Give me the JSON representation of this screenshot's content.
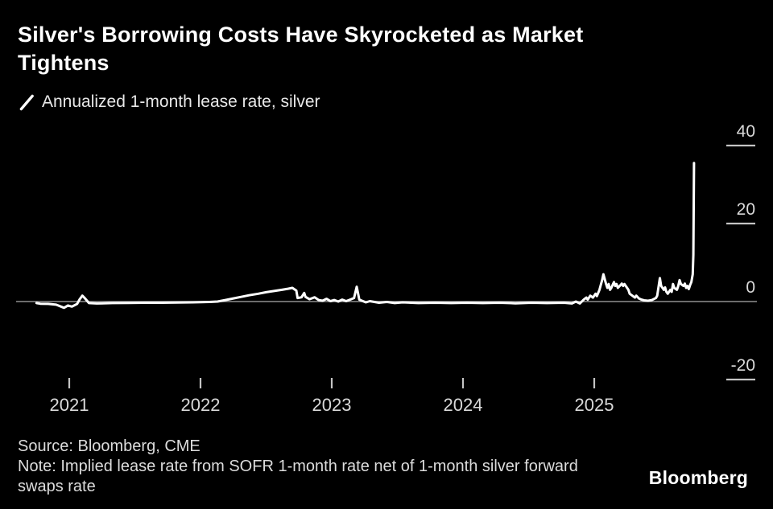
{
  "header": {
    "title": "Silver's Borrowing Costs Have Skyrocketed as Market Tightens"
  },
  "legend": {
    "label": "Annualized 1-month lease rate, silver",
    "marker_color": "#ffffff"
  },
  "chart_data": {
    "type": "line",
    "title": "Annualized 1-month lease rate, silver",
    "xlabel": "",
    "ylabel": "",
    "x_ticks": [
      2021,
      2022,
      2023,
      2024,
      2025
    ],
    "y_ticks": [
      40,
      20,
      0,
      -20
    ],
    "xlim": [
      2020.72,
      2026.0
    ],
    "ylim": [
      -25,
      42
    ],
    "grid": false,
    "legend_position": "top-left",
    "line_color": "#ffffff",
    "zero_line_color": "#909090",
    "tick_color": "#c4c4c4",
    "series": [
      {
        "name": "Annualized 1-month lease rate, silver",
        "points": [
          [
            2020.75,
            -0.4
          ],
          [
            2020.78,
            -0.55
          ],
          [
            2020.84,
            -0.6
          ],
          [
            2020.9,
            -0.8
          ],
          [
            2020.93,
            -1.2
          ],
          [
            2020.96,
            -1.6
          ],
          [
            2020.99,
            -1.0
          ],
          [
            2021.02,
            -1.3
          ],
          [
            2021.06,
            -0.6
          ],
          [
            2021.08,
            0.6
          ],
          [
            2021.1,
            1.5
          ],
          [
            2021.12,
            0.8
          ],
          [
            2021.15,
            -0.4
          ],
          [
            2021.21,
            -0.5
          ],
          [
            2021.33,
            -0.4
          ],
          [
            2021.45,
            -0.35
          ],
          [
            2021.58,
            -0.3
          ],
          [
            2021.7,
            -0.3
          ],
          [
            2021.82,
            -0.25
          ],
          [
            2021.94,
            -0.2
          ],
          [
            2022.07,
            -0.1
          ],
          [
            2022.13,
            0.0
          ],
          [
            2022.19,
            0.4
          ],
          [
            2022.25,
            0.8
          ],
          [
            2022.31,
            1.2
          ],
          [
            2022.37,
            1.6
          ],
          [
            2022.44,
            2.0
          ],
          [
            2022.5,
            2.4
          ],
          [
            2022.56,
            2.7
          ],
          [
            2022.62,
            3.0
          ],
          [
            2022.67,
            3.3
          ],
          [
            2022.7,
            3.5
          ],
          [
            2022.73,
            2.8
          ],
          [
            2022.74,
            0.9
          ],
          [
            2022.77,
            1.1
          ],
          [
            2022.79,
            2.2
          ],
          [
            2022.8,
            1.2
          ],
          [
            2022.83,
            0.6
          ],
          [
            2022.87,
            1.1
          ],
          [
            2022.9,
            0.4
          ],
          [
            2022.93,
            0.2
          ],
          [
            2022.96,
            0.7
          ],
          [
            2022.99,
            0.1
          ],
          [
            2023.02,
            0.4
          ],
          [
            2023.05,
            0.0
          ],
          [
            2023.08,
            0.5
          ],
          [
            2023.11,
            0.1
          ],
          [
            2023.14,
            0.5
          ],
          [
            2023.17,
            0.9
          ],
          [
            2023.19,
            3.8
          ],
          [
            2023.21,
            0.5
          ],
          [
            2023.23,
            0.2
          ],
          [
            2023.26,
            -0.2
          ],
          [
            2023.29,
            0.1
          ],
          [
            2023.36,
            -0.3
          ],
          [
            2023.42,
            -0.1
          ],
          [
            2023.48,
            -0.4
          ],
          [
            2023.54,
            -0.2
          ],
          [
            2023.66,
            -0.4
          ],
          [
            2023.79,
            -0.3
          ],
          [
            2023.91,
            -0.4
          ],
          [
            2024.03,
            -0.3
          ],
          [
            2024.15,
            -0.4
          ],
          [
            2024.28,
            -0.3
          ],
          [
            2024.4,
            -0.45
          ],
          [
            2024.52,
            -0.3
          ],
          [
            2024.64,
            -0.4
          ],
          [
            2024.77,
            -0.3
          ],
          [
            2024.83,
            -0.5
          ],
          [
            2024.86,
            0.0
          ],
          [
            2024.89,
            -0.5
          ],
          [
            2024.92,
            0.5
          ],
          [
            2024.94,
            1.0
          ],
          [
            2024.95,
            0.5
          ],
          [
            2024.97,
            1.5
          ],
          [
            2024.99,
            1.0
          ],
          [
            2025.01,
            2.0
          ],
          [
            2025.02,
            1.4
          ],
          [
            2025.04,
            3.0
          ],
          [
            2025.06,
            5.5
          ],
          [
            2025.07,
            7.0
          ],
          [
            2025.09,
            4.5
          ],
          [
            2025.1,
            3.5
          ],
          [
            2025.11,
            4.5
          ],
          [
            2025.12,
            3.0
          ],
          [
            2025.13,
            3.5
          ],
          [
            2025.15,
            5.0
          ],
          [
            2025.16,
            4.0
          ],
          [
            2025.17,
            4.5
          ],
          [
            2025.18,
            3.5
          ],
          [
            2025.2,
            4.2
          ],
          [
            2025.21,
            4.6
          ],
          [
            2025.22,
            4.0
          ],
          [
            2025.23,
            4.5
          ],
          [
            2025.25,
            3.5
          ],
          [
            2025.26,
            3.0
          ],
          [
            2025.27,
            2.0
          ],
          [
            2025.29,
            1.5
          ],
          [
            2025.31,
            1.0
          ],
          [
            2025.32,
            1.5
          ],
          [
            2025.34,
            0.8
          ],
          [
            2025.36,
            0.5
          ],
          [
            2025.38,
            0.3
          ],
          [
            2025.41,
            0.2
          ],
          [
            2025.44,
            0.4
          ],
          [
            2025.47,
            0.9
          ],
          [
            2025.48,
            1.5
          ],
          [
            2025.5,
            6.0
          ],
          [
            2025.51,
            4.0
          ],
          [
            2025.53,
            3.0
          ],
          [
            2025.54,
            3.6
          ],
          [
            2025.55,
            2.5
          ],
          [
            2025.56,
            2.0
          ],
          [
            2025.58,
            3.0
          ],
          [
            2025.59,
            2.5
          ],
          [
            2025.6,
            4.5
          ],
          [
            2025.61,
            3.5
          ],
          [
            2025.63,
            3.0
          ],
          [
            2025.64,
            4.0
          ],
          [
            2025.65,
            5.5
          ],
          [
            2025.66,
            4.5
          ],
          [
            2025.68,
            4.0
          ],
          [
            2025.69,
            4.6
          ],
          [
            2025.7,
            3.5
          ],
          [
            2025.71,
            4.0
          ],
          [
            2025.72,
            3.2
          ],
          [
            2025.73,
            4.2
          ],
          [
            2025.74,
            5.0
          ],
          [
            2025.75,
            7.0
          ],
          [
            2025.755,
            12.0
          ],
          [
            2025.76,
            35.5
          ]
        ]
      }
    ]
  },
  "footer": {
    "source": "Source: Bloomberg, CME",
    "note": "Note: Implied lease rate from SOFR 1-month rate net of 1-month silver forward swaps rate",
    "brand": "Bloomberg"
  },
  "colors": {
    "background": "#000000",
    "title_text": "#ffffff",
    "axis_text": "#d9d9d9",
    "footer_text": "#dcdcdc"
  }
}
